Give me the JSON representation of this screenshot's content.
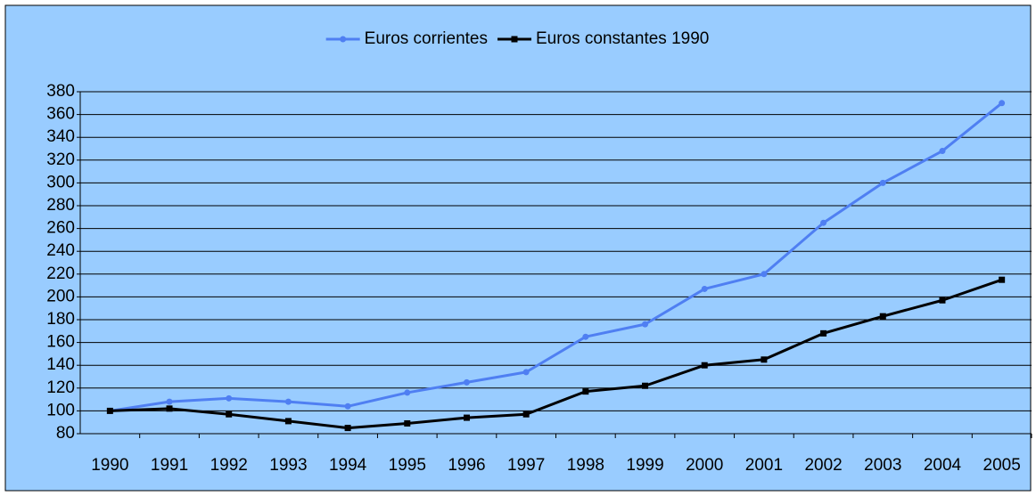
{
  "chart_data": {
    "type": "line",
    "categories": [
      "1990",
      "1991",
      "1992",
      "1993",
      "1994",
      "1995",
      "1996",
      "1997",
      "1998",
      "1999",
      "2000",
      "2001",
      "2002",
      "2003",
      "2004",
      "2005"
    ],
    "series": [
      {
        "name": "Euros corrientes",
        "color": "#4f7ff2",
        "marker": "circle",
        "values": [
          100,
          108,
          111,
          108,
          104,
          116,
          125,
          134,
          165,
          176,
          207,
          220,
          265,
          300,
          328,
          370
        ]
      },
      {
        "name": "Euros constantes 1990",
        "color": "#000000",
        "marker": "square",
        "values": [
          100,
          102,
          97,
          91,
          85,
          89,
          94,
          97,
          117,
          122,
          140,
          145,
          168,
          183,
          197,
          215
        ]
      }
    ],
    "ylim": [
      80,
      380
    ],
    "yticks": [
      80,
      100,
      120,
      140,
      160,
      180,
      200,
      220,
      240,
      260,
      280,
      300,
      320,
      340,
      360,
      380
    ],
    "grid": true,
    "legend": "top"
  }
}
